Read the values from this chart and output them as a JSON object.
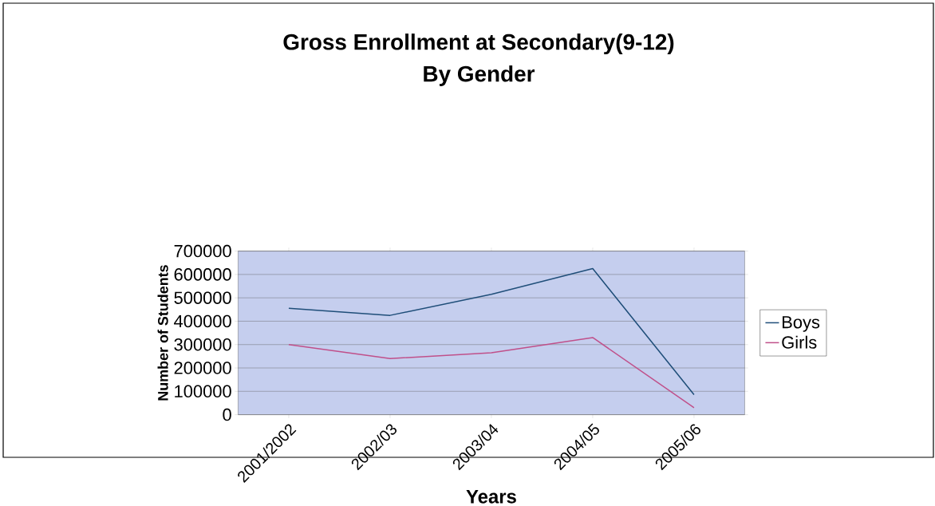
{
  "chart_data": {
    "type": "line",
    "title": "Gross Enrollment at Secondary(9-12)\nBy Gender",
    "xlabel": "Years",
    "ylabel": "Number of Students",
    "categories": [
      "2001/2002",
      "2002/03",
      "2003/04",
      "2004/05",
      "2005/06"
    ],
    "series": [
      {
        "name": "Boys",
        "color": "#1f4e79",
        "values": [
          455000,
          425000,
          515000,
          625000,
          86000
        ]
      },
      {
        "name": "Girls",
        "color": "#c0508a",
        "values": [
          300000,
          240000,
          265000,
          330000,
          30000
        ]
      }
    ],
    "ylim": [
      0,
      700000
    ],
    "yticks": [
      0,
      100000,
      200000,
      300000,
      400000,
      500000,
      600000,
      700000
    ],
    "grid": "y",
    "legend": "right",
    "marker": "none",
    "line_style": "solid"
  }
}
